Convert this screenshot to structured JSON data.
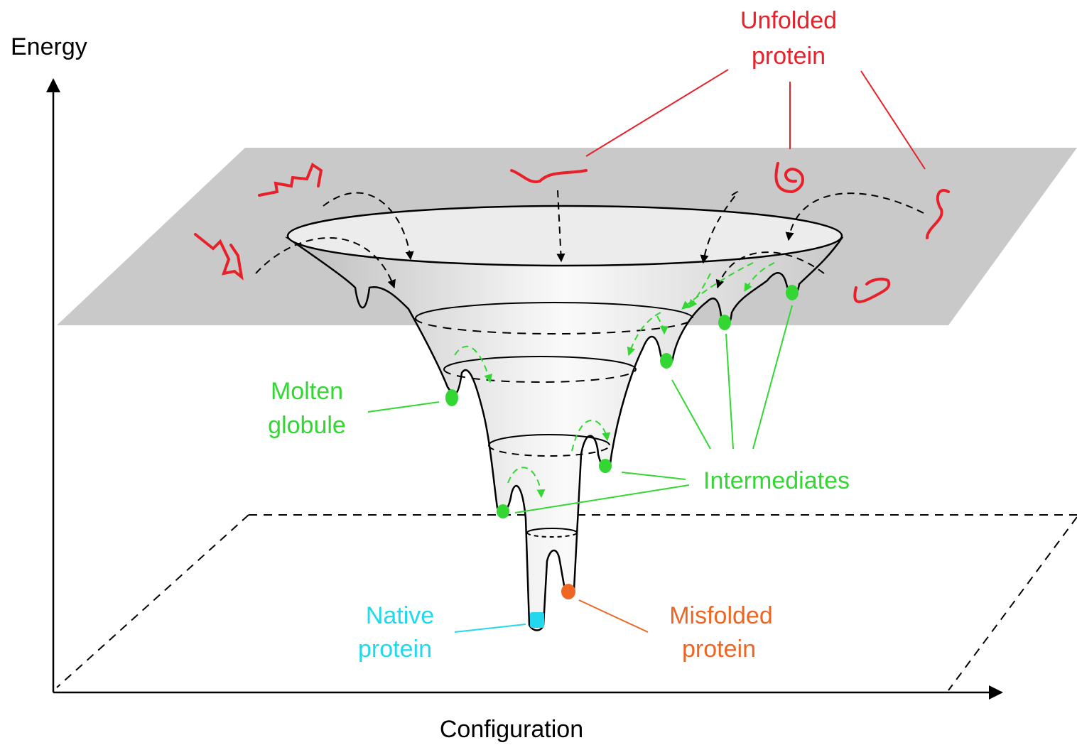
{
  "axes": {
    "y_label": "Energy",
    "x_label": "Configuration"
  },
  "labels": {
    "unfolded": [
      "Unfolded",
      "protein"
    ],
    "molten": [
      "Molten",
      "globule"
    ],
    "intermediates": "Intermediates",
    "native": [
      "Native",
      "protein"
    ],
    "misfolded": [
      "Misfolded",
      "protein"
    ]
  }
}
